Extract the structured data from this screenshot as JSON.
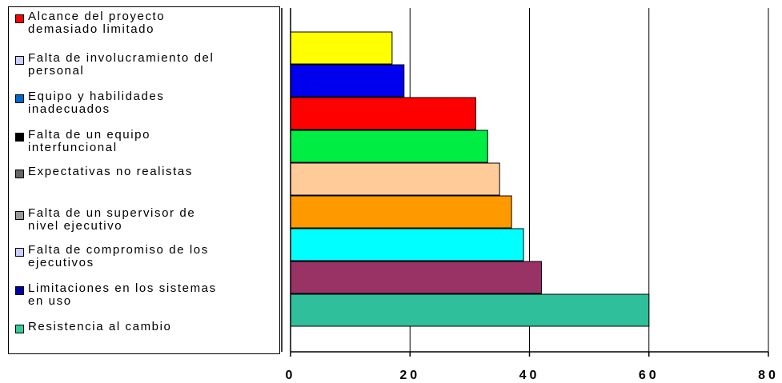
{
  "chart_data": {
    "type": "bar",
    "orientation": "horizontal",
    "title": "",
    "xlabel": "",
    "ylabel": "",
    "xlim": [
      0,
      80
    ],
    "xticks": [
      "0",
      "20",
      "40",
      "60",
      "80"
    ],
    "grid": true,
    "legend_position": "left",
    "categories": [
      "Alcance del proyecto demasiado limitado",
      "Falta de involucramiento del personal",
      "Equipo y habilidades inadecuados",
      "Falta de un equipo interfuncional",
      "Expectativas no realistas",
      "Falta de un supervisor de nivel ejecutivo",
      "Falta de compromiso de los ejecutivos",
      "Limitaciones en los sistemas en uso",
      "Resistencia al cambio"
    ],
    "values": [
      17,
      19,
      31,
      33,
      35,
      37,
      39,
      42,
      60
    ],
    "bar_colors": [
      "#ffff00",
      "#0000ee",
      "#ff0000",
      "#00ee44",
      "#ffcc99",
      "#ff9900",
      "#00ffff",
      "#993366",
      "#2fbf9a"
    ]
  },
  "legend": [
    {
      "label": "Alcance del proyecto\ndemasiado limitado",
      "color": "#ff0000"
    },
    {
      "label": "Falta de involucramiento del\npersonal",
      "color": "#ccccff"
    },
    {
      "label": "Equipo y habilidades\ninadecuados",
      "color": "#0066cc"
    },
    {
      "label": "Falta de un equipo\ninterfuncional",
      "color": "#000000"
    },
    {
      "label": "Expectativas no realistas",
      "color": "#666666"
    },
    {
      "label": "Falta de un supervisor de\nnivel ejecutivo",
      "color": "#999999"
    },
    {
      "label": "Falta de compromiso de los\nejecutivos",
      "color": "#ccccff"
    },
    {
      "label": "Limitaciones en los sistemas\nen uso",
      "color": "#0000aa"
    },
    {
      "label": "Resistencia al cambio",
      "color": "#33cc99"
    }
  ]
}
